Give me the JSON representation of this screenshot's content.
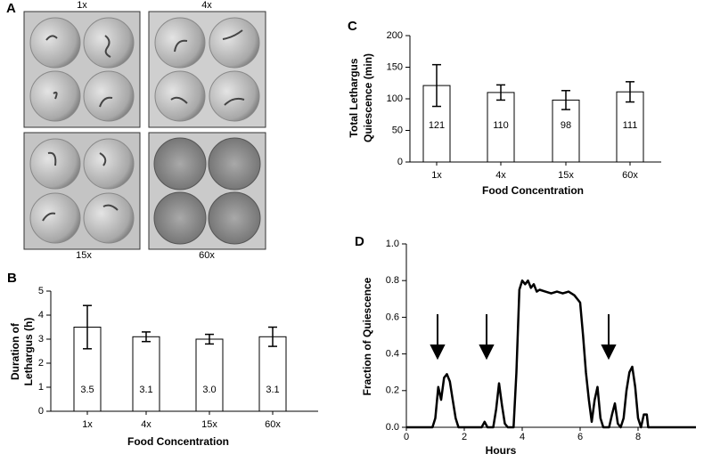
{
  "image_panel": {
    "panel": "A",
    "wells": [
      "1x",
      "4x",
      "15x",
      "60x"
    ]
  },
  "chart_data": [
    {
      "type": "bar",
      "panel": "B",
      "ylabel": [
        "Duration of",
        "Lethargus (h)"
      ],
      "xlabel": "Food Concentration",
      "categories": [
        "1x",
        "4x",
        "15x",
        "60x"
      ],
      "values": [
        3.5,
        3.1,
        3.0,
        3.1
      ],
      "value_labels": [
        "3.5",
        "3.1",
        "3.0",
        "3.1"
      ],
      "errors": [
        0.9,
        0.2,
        0.2,
        0.4
      ],
      "color": "#ffffff",
      "ylim": [
        0,
        5
      ],
      "yticks": [
        0,
        1,
        2,
        3,
        4,
        5
      ]
    },
    {
      "type": "bar",
      "panel": "C",
      "ylabel": [
        "Total Lethargus",
        "Quiescence (min)"
      ],
      "xlabel": "Food Concentration",
      "categories": [
        "1x",
        "4x",
        "15x",
        "60x"
      ],
      "values": [
        121,
        110,
        98,
        111
      ],
      "errors": [
        33,
        12,
        15,
        16
      ],
      "color": "#ffffff",
      "ylim": [
        0,
        200
      ],
      "yticks": [
        0,
        50,
        100,
        150,
        200
      ]
    },
    {
      "type": "line",
      "panel": "D",
      "ylabel": [
        "Fraction of Quiescence"
      ],
      "xlabel": "Hours",
      "xlim": [
        0,
        10
      ],
      "xticks": [
        0,
        2,
        4,
        6,
        8
      ],
      "ylim": [
        0,
        1
      ],
      "yticks": [
        {
          "value": 0,
          "label": "0.0"
        },
        {
          "value": 0.2,
          "label": "0.2"
        },
        {
          "value": 0.4,
          "label": "0.4"
        },
        {
          "value": 0.6,
          "label": "0.6"
        },
        {
          "value": 0.8,
          "label": "0.8"
        },
        {
          "value": 1,
          "label": "1.0"
        }
      ],
      "color": "#000000",
      "x": [
        0,
        0.5,
        0.9,
        1.0,
        1.1,
        1.2,
        1.3,
        1.4,
        1.5,
        1.6,
        1.7,
        1.8,
        2.6,
        2.7,
        2.8,
        3.0,
        3.1,
        3.2,
        3.3,
        3.4,
        3.5,
        3.7,
        3.8,
        3.9,
        4.0,
        4.1,
        4.2,
        4.3,
        4.4,
        4.5,
        4.6,
        4.8,
        5.0,
        5.2,
        5.4,
        5.6,
        5.8,
        6.0,
        6.1,
        6.2,
        6.3,
        6.4,
        6.5,
        6.6,
        6.7,
        6.8,
        7.0,
        7.1,
        7.2,
        7.3,
        7.4,
        7.5,
        7.6,
        7.7,
        7.8,
        7.9,
        8.0,
        8.1,
        8.2,
        8.3,
        8.35,
        8.5,
        9.0,
        10.0
      ],
      "values": [
        0,
        0,
        0,
        0.05,
        0.22,
        0.15,
        0.27,
        0.29,
        0.25,
        0.15,
        0.05,
        0,
        0,
        0.03,
        0,
        0,
        0.1,
        0.24,
        0.12,
        0.02,
        0,
        0,
        0.3,
        0.75,
        0.8,
        0.78,
        0.8,
        0.76,
        0.78,
        0.74,
        0.75,
        0.74,
        0.73,
        0.74,
        0.73,
        0.74,
        0.72,
        0.68,
        0.5,
        0.3,
        0.15,
        0.03,
        0.15,
        0.22,
        0.05,
        0,
        0,
        0.07,
        0.13,
        0.02,
        0,
        0.05,
        0.2,
        0.3,
        0.33,
        0.22,
        0.05,
        0,
        0.07,
        0.07,
        0,
        0,
        0,
        0
      ]
    }
  ]
}
